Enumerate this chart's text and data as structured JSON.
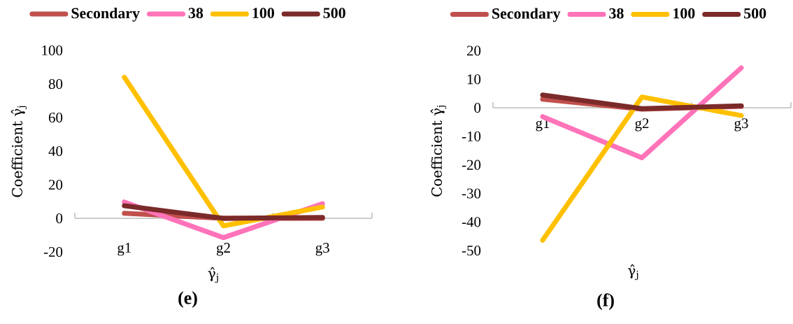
{
  "chart_data": [
    {
      "type": "line",
      "title": "(e)",
      "xlabel": "γ̂$_{j}$",
      "ylabel": "Coefficient γ̂$_{j}$",
      "categories": [
        "g1",
        "g2",
        "g3"
      ],
      "ylim": [
        -20,
        100
      ],
      "yticks": [
        -20,
        0,
        20,
        40,
        60,
        80,
        100
      ],
      "legend": "top",
      "series": [
        {
          "name": "Secondary",
          "color": "#c0504d",
          "values": [
            3,
            0,
            0
          ]
        },
        {
          "name": "38",
          "color": "#ff73b9",
          "values": [
            9.7,
            -11.5,
            8.7
          ]
        },
        {
          "name": "100",
          "color": "#ffc000",
          "values": [
            84,
            -4.5,
            6.7
          ]
        },
        {
          "name": "500",
          "color": "#7b2a2a",
          "values": [
            7.5,
            0,
            0.5
          ]
        }
      ]
    },
    {
      "type": "line",
      "title": "(f)",
      "xlabel": "γ̂$_{j}$",
      "ylabel": "Coefficient γ̂$_{j}$",
      "categories": [
        "g1",
        "g2",
        "g3"
      ],
      "ylim": [
        -50,
        20
      ],
      "yticks": [
        -50,
        -40,
        -30,
        -20,
        -10,
        0,
        10,
        20
      ],
      "legend": "top",
      "series": [
        {
          "name": "Secondary",
          "color": "#c0504d",
          "values": [
            3,
            -0.5,
            0.5
          ]
        },
        {
          "name": "38",
          "color": "#ff73b9",
          "values": [
            -3.1,
            -17.5,
            14
          ]
        },
        {
          "name": "100",
          "color": "#ffc000",
          "values": [
            -46.4,
            3.8,
            -2.7
          ]
        },
        {
          "name": "500",
          "color": "#7b2a2a",
          "values": [
            4.5,
            -0.3,
            0.7
          ]
        }
      ]
    }
  ]
}
